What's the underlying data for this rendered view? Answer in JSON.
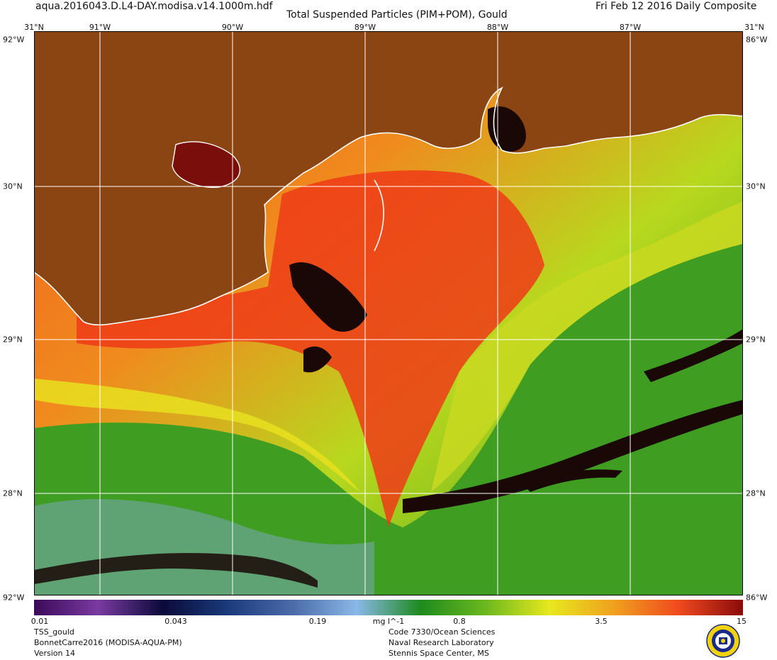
{
  "header": {
    "file_name": "aqua.2016043.D.L4-DAY.modisa.v14.1000m.hdf",
    "title": "Total Suspended Particles (PIM+POM), Gould",
    "date": "Fri Feb 12 2016 Daily Composite"
  },
  "map": {
    "lon_labels": [
      "91°W",
      "90°W",
      "89°W",
      "88°W",
      "87°W"
    ],
    "lat_labels": [
      "31°N",
      "30°N",
      "29°N",
      "28°N"
    ],
    "corner_labels": {
      "top_left_lat": "31°N",
      "top_right_lat": "31°N",
      "top_left_lon": "92°W",
      "top_right_lon": "86°W",
      "bottom_left_lon": "92°W",
      "bottom_right_lon": "86°W"
    },
    "colors": {
      "land": "#8B4513",
      "coast": "#ffffff",
      "grid": "#ffffff",
      "no_data": "#1a0806"
    }
  },
  "colorbar": {
    "ticks": [
      "0.01",
      "0.043",
      "0.19",
      "mg l^-1",
      "0.8",
      "3.5",
      "15"
    ],
    "unit": "mg l^-1",
    "colors": [
      "#3b0a5a",
      "#7a3aa0",
      "#0a0a3a",
      "#1a3a7a",
      "#4a6aa8",
      "#8ab8e8",
      "#1e8a1e",
      "#6ab81e",
      "#e8e81e",
      "#f0a01e",
      "#f04a1e",
      "#8a0a0a"
    ]
  },
  "footer": {
    "left": [
      "TSS_gould",
      "BonnetCarre2016 (MODISA-AQUA-PM)",
      "Version 14"
    ],
    "right": [
      "Code 7330/Ocean Sciences",
      "Naval Research Laboratory",
      "Stennis Space Center, MS"
    ]
  },
  "logo": {
    "icon": "navy-seal-icon"
  }
}
